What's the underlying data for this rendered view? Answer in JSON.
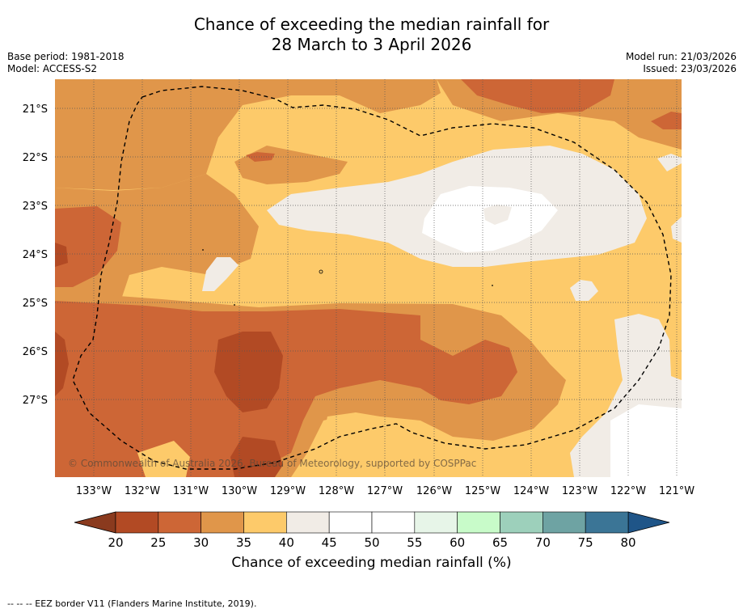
{
  "title": {
    "line1": "Chance of exceeding the median rainfall for",
    "line2": "28 March to 3 April 2026"
  },
  "meta": {
    "base_period": "Base period: 1981-2018",
    "model": "Model: ACCESS-S2",
    "model_run": "Model run: 21/03/2026",
    "issued": "Issued: 23/03/2026"
  },
  "map": {
    "lon_labels": [
      "133°W",
      "132°W",
      "131°W",
      "130°W",
      "129°W",
      "128°W",
      "127°W",
      "126°W",
      "125°W",
      "124°W",
      "123°W",
      "122°W",
      "121°W"
    ],
    "lat_labels": [
      "21°S",
      "22°S",
      "23°S",
      "24°S",
      "25°S",
      "26°S",
      "27°S"
    ],
    "copyright": "© Commonwealth of Australia 2026, Bureau of Meteorology, supported by COSPPac"
  },
  "colorbar": {
    "ticks": [
      "20",
      "25",
      "30",
      "35",
      "40",
      "45",
      "50",
      "55",
      "60",
      "65",
      "70",
      "75",
      "80"
    ],
    "colors": [
      "#b24a24",
      "#cd6636",
      "#e0964a",
      "#fdca6a",
      "#f1ece6",
      "#ffffff",
      "#ffffff",
      "#e7f5e8",
      "#c8fbc9",
      "#9dd0bb",
      "#6ea3a3",
      "#3b7596"
    ],
    "under_color": "#8a3a1e",
    "over_color": "#1f5588",
    "label": "Chance of exceeding median rainfall (%)"
  },
  "footnote": "--  --  -- EEZ border V11 (Flanders Marine Institute, 2019)."
}
